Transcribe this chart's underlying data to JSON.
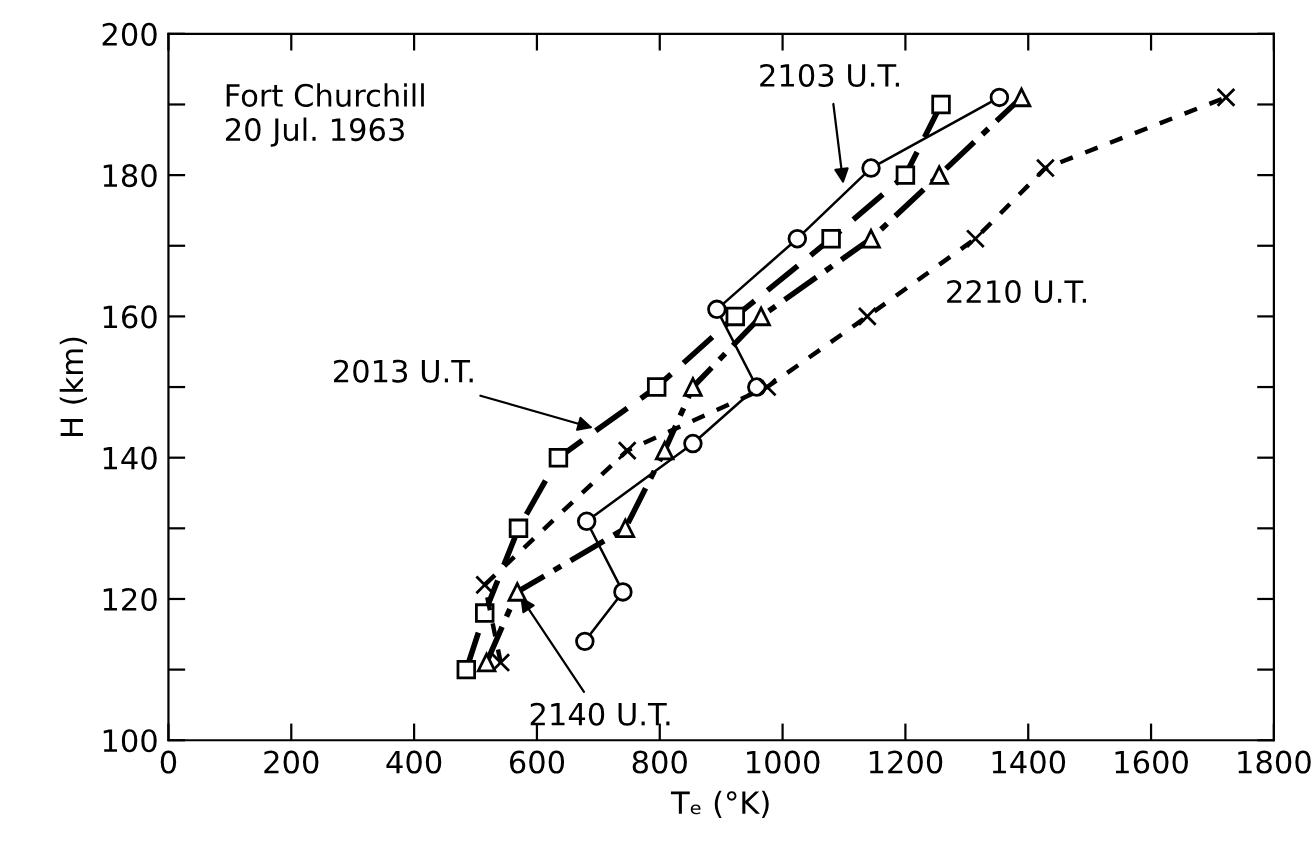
{
  "chart_data": {
    "type": "line",
    "xlabel": "Tₑ (°K)",
    "ylabel": "H (km)",
    "xlim": [
      0,
      1800
    ],
    "xticks": [
      0,
      200,
      400,
      600,
      800,
      1000,
      1200,
      1400,
      1600,
      1800
    ],
    "ylim": [
      100,
      200
    ],
    "yticks": [
      100,
      {
        "value": 110,
        "label": null
      },
      120,
      {
        "value": 130,
        "label": null
      },
      140,
      {
        "value": 150,
        "label": null
      },
      160,
      {
        "value": 170,
        "label": null
      },
      180,
      {
        "value": 190,
        "label": null
      },
      200
    ],
    "grid": false,
    "legend": false,
    "series": [
      {
        "color": "#000000",
        "marker": "square",
        "line_style": "dashed",
        "x": [
          485,
          515,
          570,
          635,
          795,
          923,
          1079,
          1200,
          1258
        ],
        "values": [
          110,
          118,
          130,
          140,
          150,
          160,
          171,
          180,
          190
        ]
      },
      {
        "color": "#000000",
        "marker": "circle",
        "line_style": "solid",
        "x": [
          678,
          740,
          681,
          854,
          958,
          893,
          1024,
          1144,
          1353
        ],
        "values": [
          114,
          121,
          131,
          142,
          150,
          161,
          171,
          181,
          191
        ]
      },
      {
        "color": "#000000",
        "marker": "triangle",
        "line_style": "dashed",
        "x": [
          518,
          568,
          744,
          808,
          854,
          965,
          1144,
          1255,
          1389
        ],
        "values": [
          111,
          121,
          130,
          141,
          150,
          160,
          171,
          180,
          191
        ]
      },
      {
        "color": "#000000",
        "marker": "cross",
        "line_style": "dotted",
        "x": [
          541,
          515,
          747,
          975,
          1138,
          1314,
          1428,
          1722
        ],
        "values": [
          111,
          122,
          141,
          150,
          160,
          171,
          181,
          191
        ]
      }
    ],
    "annotations": [
      "Fort Churchill\n20 Jul. 1963",
      {
        "text": "2013 U.T.",
        "x": 700,
        "y": 144
      },
      {
        "text": "2103 U.T.",
        "x": 1100,
        "y": 178
      },
      {
        "text": "2140 U.T.",
        "x": 568,
        "y": 121
      },
      {
        "text": "2210 U.T.",
        "x": 1314,
        "y": 171
      }
    ]
  }
}
